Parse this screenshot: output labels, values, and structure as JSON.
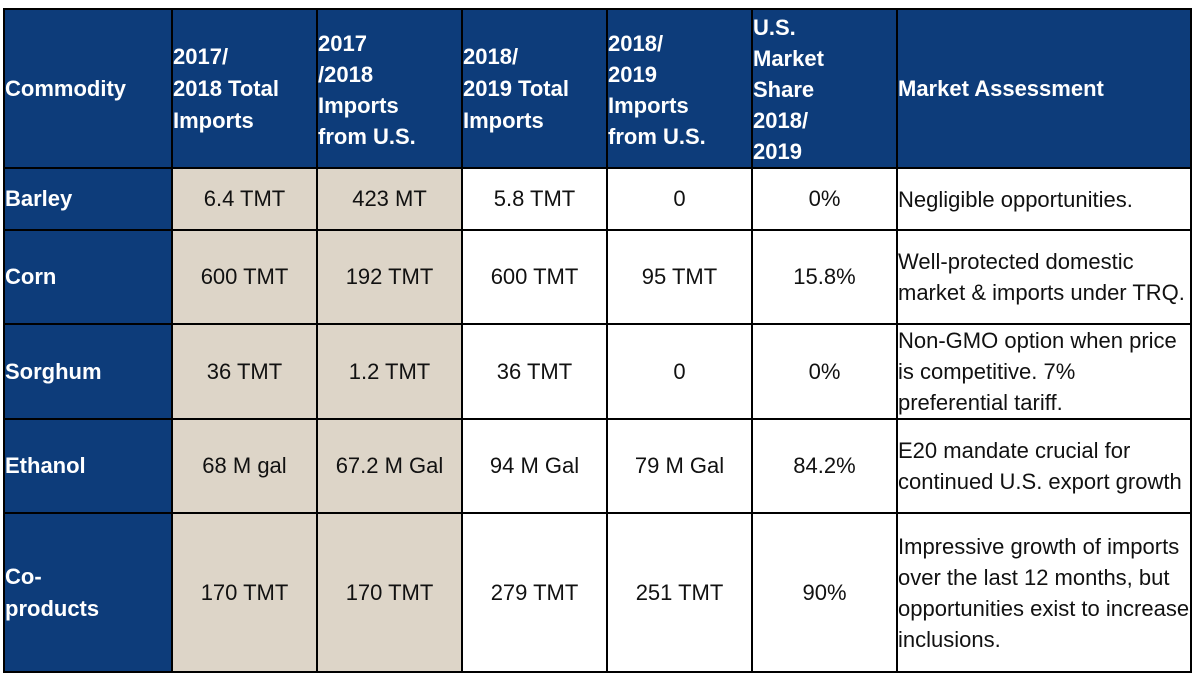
{
  "table": {
    "headers": [
      "Commodity",
      "2017/\n2018 Total\nImports",
      "2017\n/2018\nImports\nfrom U.S.",
      "2018/\n2019 Total\nImports",
      "2018/\n2019\nImports\nfrom U.S.",
      "U.S.\nMarket\nShare\n2018/\n2019",
      "Market Assessment"
    ],
    "rows": [
      {
        "commodity": "Barley",
        "total_1718": "6.4 TMT",
        "us_1718": "423 MT",
        "total_1819": "5.8 TMT",
        "us_1819": "0",
        "share": "0%",
        "assessment": "Negligible opportunities."
      },
      {
        "commodity": "Corn",
        "total_1718": "600 TMT",
        "us_1718": "192 TMT",
        "total_1819": "600 TMT",
        "us_1819": "95 TMT",
        "share": "15.8%",
        "assessment": "Well-protected domestic market & imports under TRQ."
      },
      {
        "commodity": "Sorghum",
        "total_1718": "36 TMT",
        "us_1718": "1.2 TMT",
        "total_1819": "36 TMT",
        "us_1819": "0",
        "share": "0%",
        "assessment": "Non-GMO option when price is competitive. 7% preferential tariff."
      },
      {
        "commodity": "Ethanol",
        "total_1718": "68 M gal",
        "us_1718": "67.2 M Gal",
        "total_1819": "94 M Gal",
        "us_1819": "79 M Gal",
        "share": "84.2%",
        "assessment": "E20 mandate crucial for continued U.S. export growth"
      },
      {
        "commodity": "Co-\nproducts",
        "total_1718": "170 TMT",
        "us_1718": "170 TMT",
        "total_1819": "279 TMT",
        "us_1819": "251 TMT",
        "share": "90%",
        "assessment": "Impressive  growth of imports over the last 12 months, but opportunities exist to increase inclusions."
      }
    ]
  },
  "colors": {
    "header_bg": "#0d3c7a",
    "highlight_bg": "#ddd5c8",
    "border": "#000000"
  }
}
